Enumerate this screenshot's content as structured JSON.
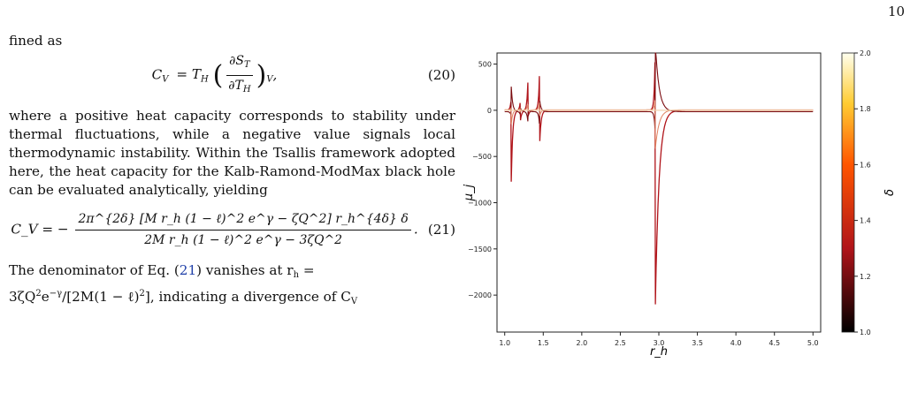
{
  "page_number": "10",
  "para1": "fined as",
  "eq20": {
    "lhs": "C",
    "lhs_sub": "V",
    "eq": "= T",
    "th_sub": "H",
    "num": "∂S",
    "num_sub": "T",
    "den": "∂T",
    "den_sub": "H",
    "outer_sub": "V",
    "number": "(20)"
  },
  "para2": "where a positive heat capacity corresponds to stability under thermal fluctuations, while a negative value signals local thermodynamic instability. Within the Tsallis framework adopted here, the heat capacity for the Kalb-Ramond-ModMax black hole can be evaluated analytically, yielding",
  "eq21": {
    "lhs": "C_V = −",
    "num": "2π^{2δ} [M r_h (1 − ℓ)^2 e^γ − ζQ^2] r_h^{4δ} δ",
    "den": "2M r_h (1 − ℓ)^2 e^γ − 3ζQ^2",
    "number": "(21)"
  },
  "para3_a": "The denominator of Eq. (",
  "para3_ref": "21",
  "para3_b": ") vanishes at r",
  "para3_c": "=",
  "para3_d": "3ζQ",
  "para3_e": "e",
  "para3_f": "/[2M(1 − ℓ)",
  "para3_g": "], indicating a divergence of C",
  "para3_r_sub": "h",
  "para3_sup2": "2",
  "para3_gamma": "−γ",
  "para3_v_sub": "V",
  "chart_data": {
    "type": "line",
    "xlabel": "r_h",
    "ylabel": "μ_j",
    "colorbar_label": "δ",
    "xlim": [
      0.9,
      5.1
    ],
    "ylim": [
      -2400,
      620
    ],
    "x_ticks": [
      1.0,
      1.5,
      2.0,
      2.5,
      3.0,
      3.5,
      4.0,
      4.5,
      5.0
    ],
    "y_ticks": [
      500,
      0,
      -500,
      -1000,
      -1500,
      -2000
    ],
    "colorbar_ticks": [
      1.0,
      1.2,
      1.4,
      1.6,
      1.8,
      2.0
    ],
    "colorbar_range": [
      1.0,
      2.0
    ],
    "poles": [
      1.08,
      1.2,
      1.3,
      1.45,
      2.95
    ],
    "curve_peaks": [
      {
        "x": 1.08,
        "up": 90,
        "down": -1020
      },
      {
        "x": 1.2,
        "up": 80,
        "down": -140
      },
      {
        "x": 1.3,
        "up": 300,
        "down": -80
      },
      {
        "x": 1.45,
        "up": 370,
        "down": -440
      },
      {
        "x": 2.95,
        "up": 520,
        "down": -2330
      }
    ],
    "line_color": "#b0141a"
  }
}
